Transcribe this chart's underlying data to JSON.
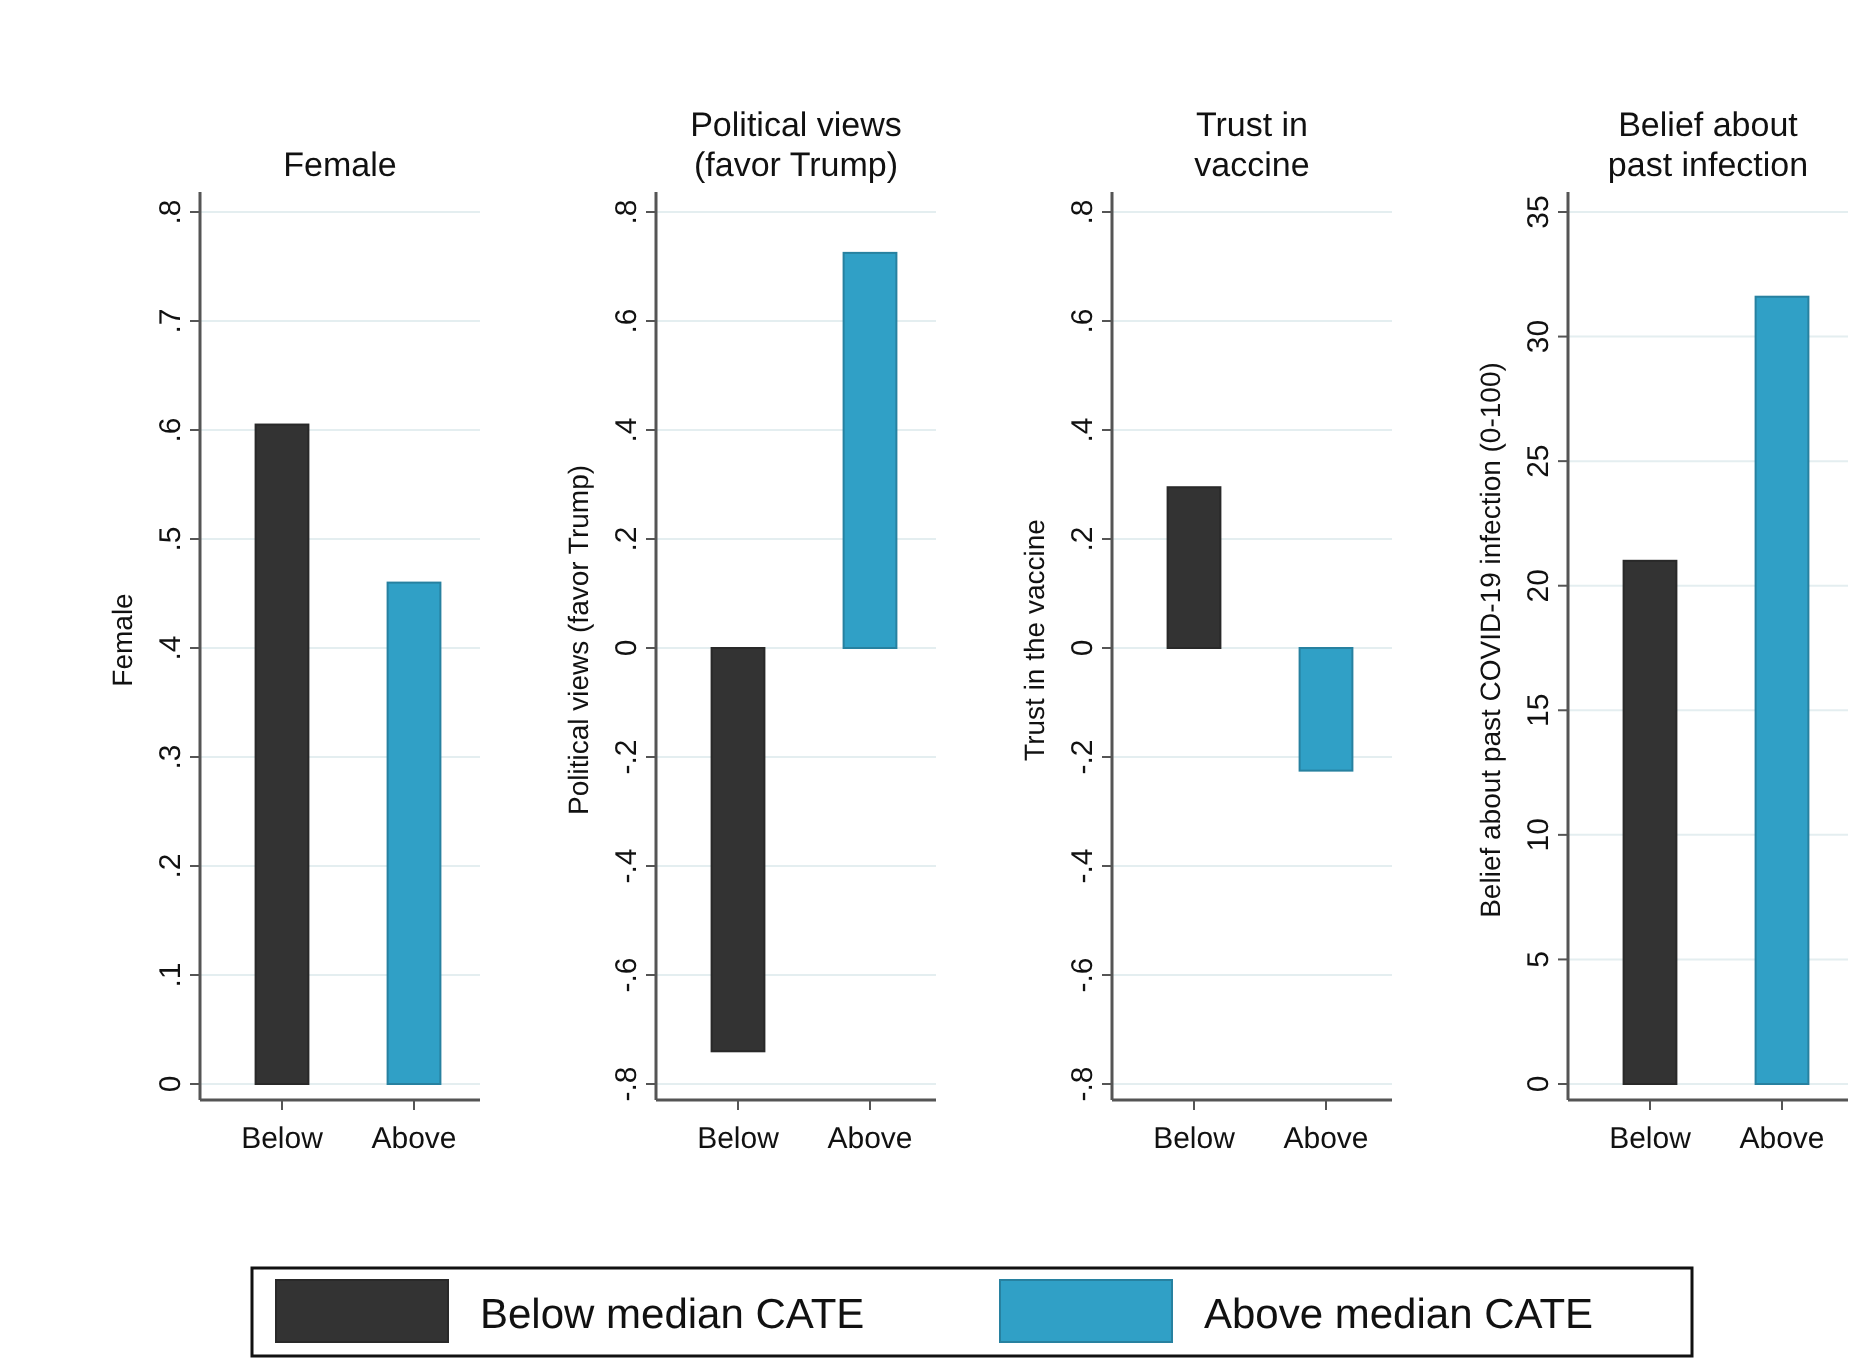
{
  "chart_data": [
    {
      "type": "bar",
      "title": "Female",
      "ylabel": "Female",
      "categories": [
        "Below",
        "Above"
      ],
      "series": [
        {
          "name": "Below median CATE",
          "color": "#333333",
          "values": [
            0.605,
            null
          ]
        },
        {
          "name": "Above median CATE",
          "color": "#30a0c6",
          "values": [
            null,
            0.46
          ]
        }
      ],
      "ylim": [
        0,
        0.8
      ],
      "yticks": [
        {
          "value": 0,
          "label": "0"
        },
        {
          "value": 0.1,
          "label": ".1"
        },
        {
          "value": 0.2,
          "label": ".2"
        },
        {
          "value": 0.3,
          "label": ".3"
        },
        {
          "value": 0.4,
          "label": ".4"
        },
        {
          "value": 0.5,
          "label": ".5"
        },
        {
          "value": 0.6,
          "label": ".6"
        },
        {
          "value": 0.7,
          "label": ".7"
        },
        {
          "value": 0.8,
          "label": ".8"
        }
      ],
      "grid": "y",
      "legend": "bottom"
    },
    {
      "type": "bar",
      "title": "Political views\n(favor Trump)",
      "ylabel": "Political views (favor Trump)",
      "categories": [
        "Below",
        "Above"
      ],
      "series": [
        {
          "color": "#333333",
          "values": [
            -0.74,
            null
          ]
        },
        {
          "color": "#30a0c6",
          "values": [
            null,
            0.725
          ]
        }
      ],
      "ylim": [
        -0.8,
        0.8
      ],
      "yticks": [
        {
          "value": -0.8,
          "label": "-.8"
        },
        {
          "value": -0.6,
          "label": "-.6"
        },
        {
          "value": -0.4,
          "label": "-.4"
        },
        {
          "value": -0.2,
          "label": "-.2"
        },
        {
          "value": 0,
          "label": "0"
        },
        {
          "value": 0.2,
          "label": ".2"
        },
        {
          "value": 0.4,
          "label": ".4"
        },
        {
          "value": 0.6,
          "label": ".6"
        },
        {
          "value": 0.8,
          "label": ".8"
        }
      ],
      "grid": "y"
    },
    {
      "type": "bar",
      "title": "Trust in\nvaccine",
      "ylabel": "Trust in the vaccine",
      "categories": [
        "Below",
        "Above"
      ],
      "series": [
        {
          "color": "#333333",
          "values": [
            0.295,
            null
          ]
        },
        {
          "color": "#30a0c6",
          "values": [
            null,
            -0.225
          ]
        }
      ],
      "ylim": [
        -0.8,
        0.8
      ],
      "yticks": [
        {
          "value": -0.8,
          "label": "-.8"
        },
        {
          "value": -0.6,
          "label": "-.6"
        },
        {
          "value": -0.4,
          "label": "-.4"
        },
        {
          "value": -0.2,
          "label": "-.2"
        },
        {
          "value": 0,
          "label": "0"
        },
        {
          "value": 0.2,
          "label": ".2"
        },
        {
          "value": 0.4,
          "label": ".4"
        },
        {
          "value": 0.6,
          "label": ".6"
        },
        {
          "value": 0.8,
          "label": ".8"
        }
      ],
      "grid": "y"
    },
    {
      "type": "bar",
      "title": "Belief about\npast infection",
      "ylabel": "Belief about past COVID-19 infection (0-100)",
      "categories": [
        "Below",
        "Above"
      ],
      "series": [
        {
          "color": "#333333",
          "values": [
            21,
            null
          ]
        },
        {
          "color": "#30a0c6",
          "values": [
            null,
            31.6
          ]
        }
      ],
      "ylim": [
        0,
        35
      ],
      "yticks": [
        0,
        5,
        10,
        15,
        20,
        25,
        30,
        35
      ],
      "grid": "y"
    }
  ]
}
